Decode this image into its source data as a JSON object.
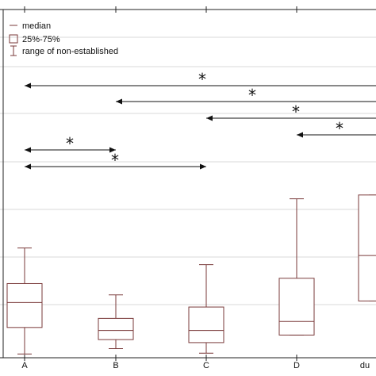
{
  "chart_data": {
    "type": "box",
    "categories": [
      "A",
      "B",
      "C",
      "D",
      "du"
    ],
    "ylim": [
      0,
      460
    ],
    "grid": true,
    "legend": {
      "placement": "top-left",
      "entries": [
        {
          "symbol": "line",
          "label": "median"
        },
        {
          "symbol": "box",
          "label": "25%-75%"
        },
        {
          "symbol": "whisker",
          "label": "range of non-established"
        }
      ]
    },
    "boxes": [
      {
        "category": "A",
        "min": 5,
        "q1": 40,
        "median": 73,
        "q3": 98,
        "max": 145
      },
      {
        "category": "B",
        "min": 12,
        "q1": 24,
        "median": 36,
        "q3": 52,
        "max": 83
      },
      {
        "category": "C",
        "min": 6,
        "q1": 20,
        "median": 36,
        "q3": 67,
        "max": 123
      },
      {
        "category": "D",
        "min": 30,
        "q1": 30,
        "median": 48,
        "q3": 105,
        "max": 210
      },
      {
        "category": "du",
        "min": 75,
        "q1": 75,
        "median": 135,
        "q3": 215,
        "max": 215
      }
    ],
    "comparisons": [
      {
        "from": "A",
        "to": "du",
        "label": "*"
      },
      {
        "from": "B",
        "to": "du",
        "label": "*"
      },
      {
        "from": "C",
        "to": "du",
        "label": "*"
      },
      {
        "from": "D",
        "to": "du",
        "label": "*"
      },
      {
        "from": "A",
        "to": "B",
        "label": "*"
      },
      {
        "from": "A",
        "to": "C",
        "label": "*"
      }
    ],
    "colors": {
      "box": "#7a3a3a",
      "arrow": "#111111",
      "grid": "#d9d9d9"
    }
  }
}
